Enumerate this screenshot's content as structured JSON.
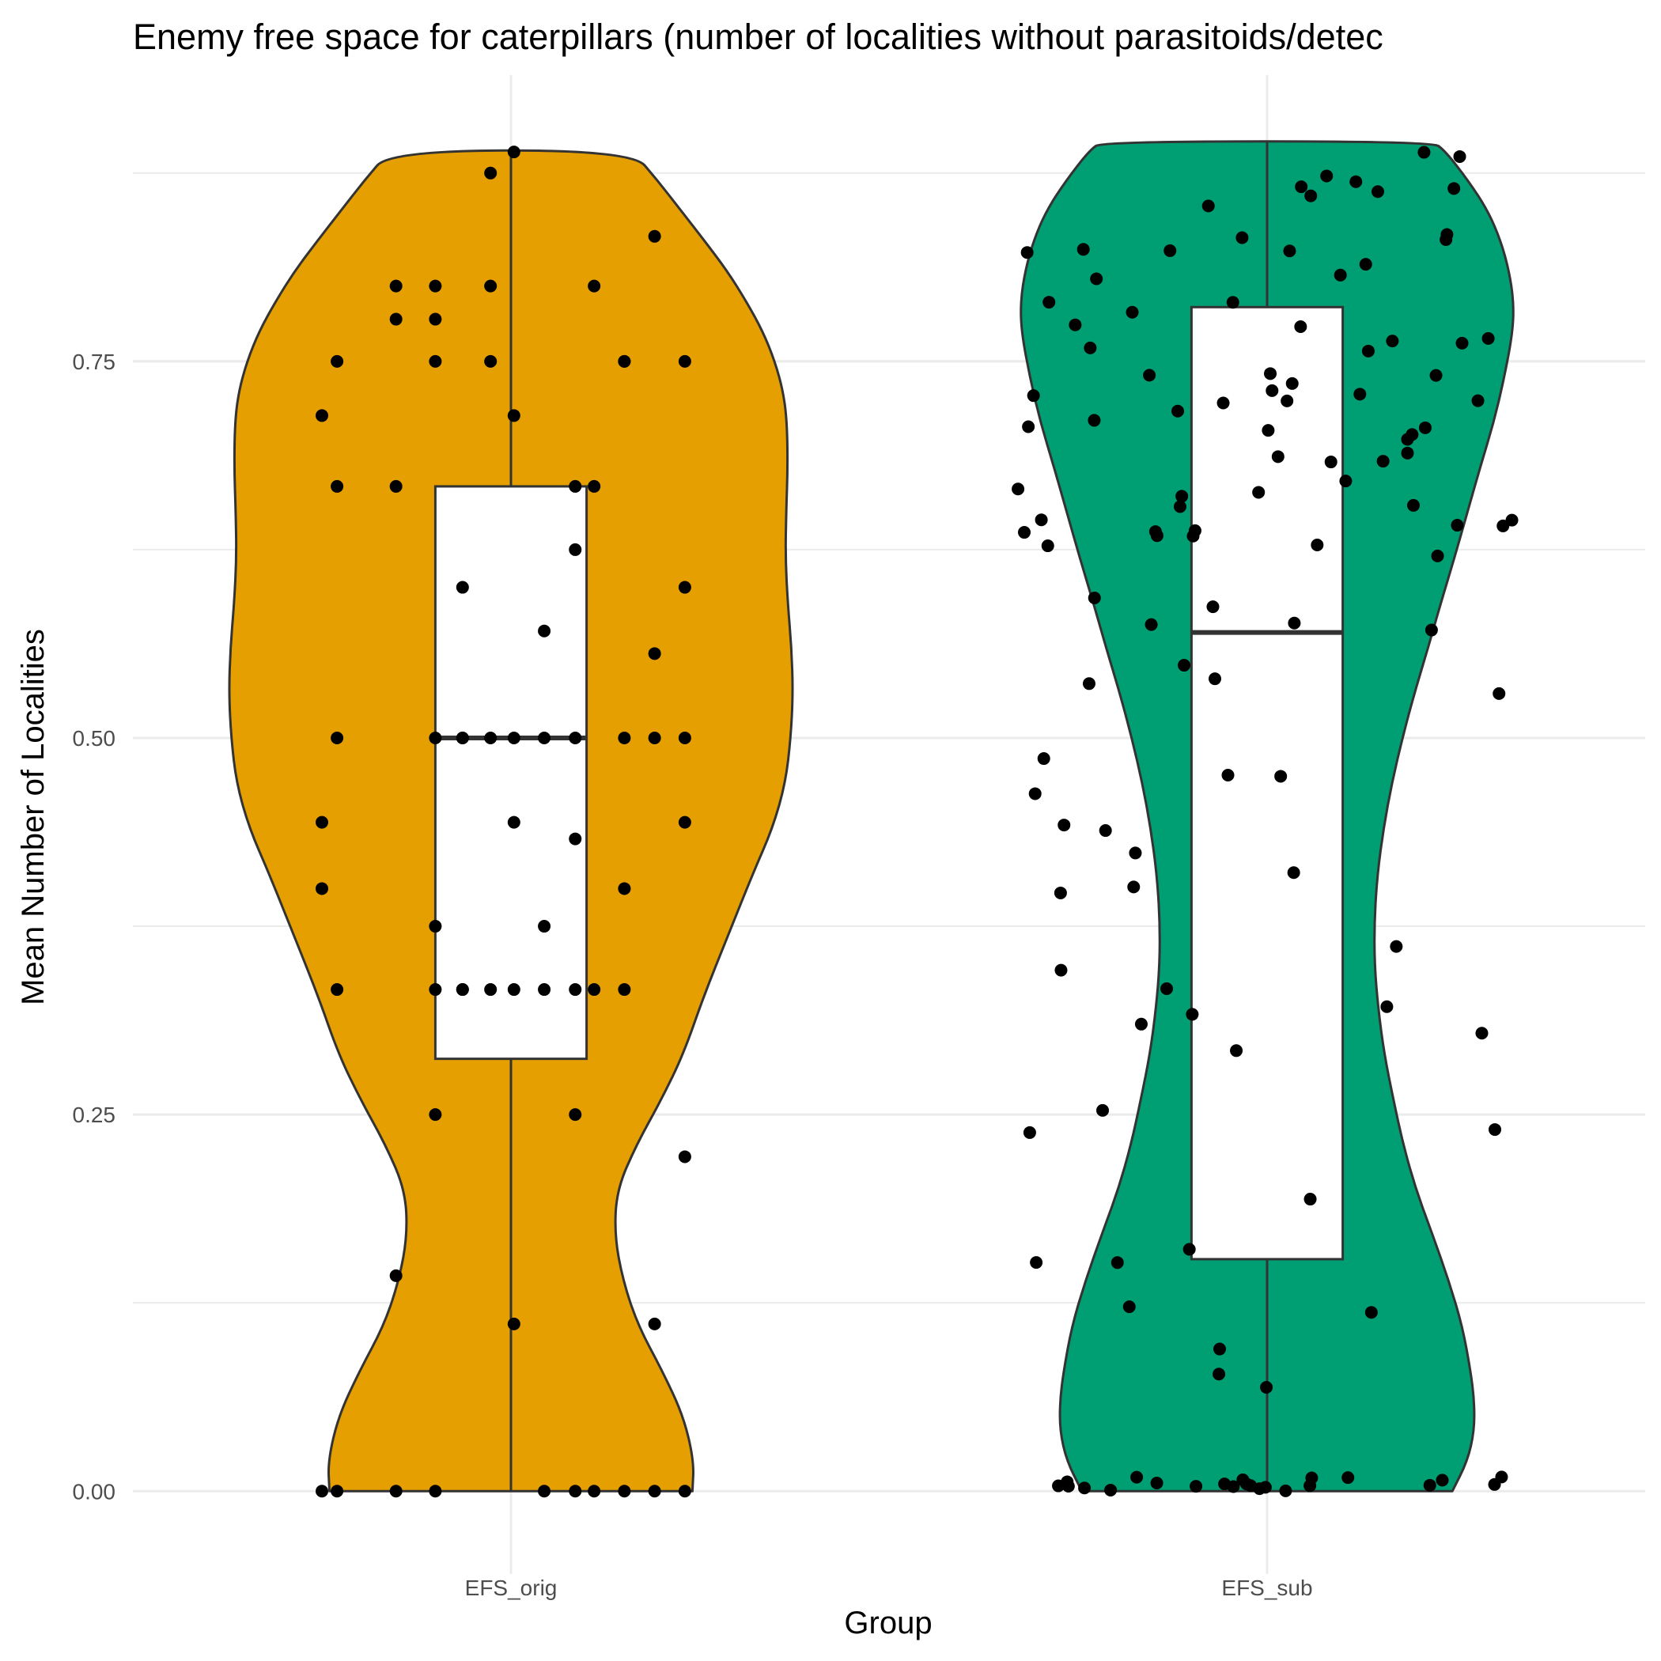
{
  "colors": {
    "EFS_orig": "#E69F00",
    "EFS_sub": "#009E73",
    "grid": "#ebebeb",
    "outline": "#333333",
    "point": "#000000"
  },
  "chart_data": {
    "type": "violin",
    "title": "Enemy free space for caterpillars (number of localities without parasitoids/detec",
    "xlabel": "Group",
    "ylabel": "Mean Number of Localities",
    "categories": [
      "EFS_orig",
      "EFS_sub"
    ],
    "ylim": [
      -0.055,
      0.94
    ],
    "y_ticks": [
      0.0,
      0.25,
      0.5,
      0.75
    ],
    "y_tick_labels": [
      "0.00",
      "0.25",
      "0.50",
      "0.75"
    ],
    "grid": true,
    "legend": "none",
    "violins": [
      {
        "group": "EFS_orig",
        "profile": [
          [
            0.0,
            0.24
          ],
          [
            0.02,
            0.242
          ],
          [
            0.05,
            0.228
          ],
          [
            0.08,
            0.2
          ],
          [
            0.11,
            0.168
          ],
          [
            0.14,
            0.148
          ],
          [
            0.17,
            0.137
          ],
          [
            0.2,
            0.14
          ],
          [
            0.23,
            0.166
          ],
          [
            0.26,
            0.199
          ],
          [
            0.29,
            0.228
          ],
          [
            0.33,
            0.256
          ],
          [
            0.37,
            0.288
          ],
          [
            0.41,
            0.32
          ],
          [
            0.44,
            0.346
          ],
          [
            0.47,
            0.363
          ],
          [
            0.5,
            0.37
          ],
          [
            0.53,
            0.373
          ],
          [
            0.56,
            0.371
          ],
          [
            0.59,
            0.366
          ],
          [
            0.62,
            0.363
          ],
          [
            0.65,
            0.364
          ],
          [
            0.68,
            0.366
          ],
          [
            0.71,
            0.365
          ],
          [
            0.73,
            0.36
          ],
          [
            0.75,
            0.349
          ],
          [
            0.77,
            0.333
          ],
          [
            0.79,
            0.311
          ],
          [
            0.81,
            0.286
          ],
          [
            0.83,
            0.256
          ],
          [
            0.85,
            0.225
          ],
          [
            0.87,
            0.194
          ],
          [
            0.89,
            0.16
          ]
        ]
      },
      {
        "group": "EFS_sub",
        "profile": [
          [
            0.0,
            0.245
          ],
          [
            0.02,
            0.265
          ],
          [
            0.04,
            0.274
          ],
          [
            0.06,
            0.274
          ],
          [
            0.08,
            0.269
          ],
          [
            0.11,
            0.258
          ],
          [
            0.14,
            0.24
          ],
          [
            0.17,
            0.219
          ],
          [
            0.2,
            0.197
          ],
          [
            0.23,
            0.18
          ],
          [
            0.26,
            0.167
          ],
          [
            0.29,
            0.155
          ],
          [
            0.32,
            0.147
          ],
          [
            0.35,
            0.142
          ],
          [
            0.38,
            0.142
          ],
          [
            0.41,
            0.146
          ],
          [
            0.44,
            0.154
          ],
          [
            0.47,
            0.165
          ],
          [
            0.5,
            0.179
          ],
          [
            0.53,
            0.195
          ],
          [
            0.56,
            0.213
          ],
          [
            0.59,
            0.23
          ],
          [
            0.62,
            0.248
          ],
          [
            0.65,
            0.265
          ],
          [
            0.68,
            0.282
          ],
          [
            0.71,
            0.3
          ],
          [
            0.74,
            0.314
          ],
          [
            0.77,
            0.325
          ],
          [
            0.79,
            0.326
          ],
          [
            0.81,
            0.32
          ],
          [
            0.83,
            0.309
          ],
          [
            0.85,
            0.292
          ],
          [
            0.87,
            0.266
          ],
          [
            0.89,
            0.235
          ],
          [
            0.896,
            0.218
          ]
        ]
      }
    ],
    "boxes": [
      {
        "group": "EFS_orig",
        "q1": 0.287,
        "median": 0.5,
        "q3": 0.667,
        "whisker_low": 0.0,
        "whisker_high": 0.889
      },
      {
        "group": "EFS_sub",
        "q1": 0.154,
        "median": 0.57,
        "q3": 0.786,
        "whisker_low": 0.0,
        "whisker_high": 0.896
      }
    ],
    "points": [
      {
        "group": "EFS_orig",
        "x_offset": 0.004,
        "values": [
          0.889,
          0.714,
          0.5,
          0.444,
          0.333,
          0.111
        ]
      },
      {
        "group": "EFS_orig",
        "x_offset": -0.064,
        "values": [
          0.6,
          0.5,
          0.5,
          0.333,
          0.333
        ]
      },
      {
        "group": "EFS_orig",
        "x_offset": 0.044,
        "values": [
          0.571,
          0.5,
          0.375,
          0.333,
          0.0
        ]
      },
      {
        "group": "EFS_orig",
        "x_offset": 0.085,
        "values": [
          0.667,
          0.625,
          0.5,
          0.433,
          0.333,
          0.25,
          0.0
        ]
      },
      {
        "group": "EFS_orig",
        "x_offset": 0.15,
        "values": [
          0.75,
          0.75,
          0.5,
          0.4,
          0.333,
          0.0
        ]
      },
      {
        "group": "EFS_orig",
        "x_offset": -0.23,
        "values": [
          0.75,
          0.667,
          0.5,
          0.333,
          0.0
        ]
      },
      {
        "group": "EFS_orig",
        "x_offset": -0.25,
        "values": [
          0.714,
          0.444,
          0.4,
          0.0
        ]
      },
      {
        "group": "EFS_orig",
        "x_offset": -0.152,
        "values": [
          0.8,
          0.778,
          0.667,
          0.143,
          0.0
        ]
      },
      {
        "group": "EFS_orig",
        "x_offset": -0.1,
        "values": [
          0.8,
          0.778,
          0.75,
          0.5,
          0.375,
          0.333,
          0.25,
          0.0
        ]
      },
      {
        "group": "EFS_orig",
        "x_offset": -0.027,
        "values": [
          0.8,
          0.875,
          0.75,
          0.5,
          0.333
        ]
      },
      {
        "group": "EFS_orig",
        "x_offset": 0.11,
        "values": [
          0.8,
          0.667,
          0.333,
          0.0
        ]
      },
      {
        "group": "EFS_orig",
        "x_offset": 0.23,
        "values": [
          0.75,
          0.6,
          0.5,
          0.444,
          0.222,
          0.0
        ]
      },
      {
        "group": "EFS_orig",
        "x_offset": 0.19,
        "values": [
          0.833,
          0.556,
          0.5,
          0.111,
          0.0
        ]
      }
    ],
    "point_samples": 123
  }
}
